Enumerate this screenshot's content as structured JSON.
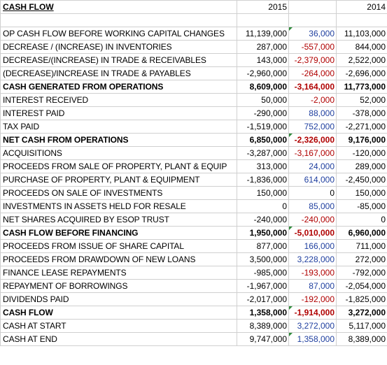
{
  "title": "CASH FLOW",
  "headers": {
    "y2015": "2015",
    "variance": "",
    "y2014": "2014"
  },
  "rows": [
    {
      "label": "OP CASH FLOW BEFORE WORKING CAPITAL CHANGES",
      "v2015": "11,139,000",
      "var": "36,000",
      "v2014": "11,103,000",
      "bold": false,
      "sign": "pos",
      "flag": true
    },
    {
      "label": "DECREASE / (INCREASE) IN INVENTORIES",
      "v2015": "287,000",
      "var": "-557,000",
      "v2014": "844,000",
      "bold": false,
      "sign": "neg",
      "flag": false
    },
    {
      "label": "DECREASE/(INCREASE) IN TRADE & RECEIVABLES",
      "v2015": "143,000",
      "var": "-2,379,000",
      "v2014": "2,522,000",
      "bold": false,
      "sign": "neg",
      "flag": false
    },
    {
      "label": "(DECREASE)/INCREASE IN TRADE & PAYABLES",
      "v2015": "-2,960,000",
      "var": "-264,000",
      "v2014": "-2,696,000",
      "bold": false,
      "sign": "neg",
      "flag": false
    },
    {
      "label": "CASH GENERATED FROM OPERATIONS",
      "v2015": "8,609,000",
      "var": "-3,164,000",
      "v2014": "11,773,000",
      "bold": true,
      "sign": "neg",
      "flag": false
    },
    {
      "label": "INTEREST RECEIVED",
      "v2015": "50,000",
      "var": "-2,000",
      "v2014": "52,000",
      "bold": false,
      "sign": "neg",
      "flag": false
    },
    {
      "label": "INTEREST PAID",
      "v2015": "-290,000",
      "var": "88,000",
      "v2014": "-378,000",
      "bold": false,
      "sign": "pos",
      "flag": false
    },
    {
      "label": "TAX PAID",
      "v2015": "-1,519,000",
      "var": "752,000",
      "v2014": "-2,271,000",
      "bold": false,
      "sign": "pos",
      "flag": false
    },
    {
      "label": "NET CASH FROM OPERATIONS",
      "v2015": "6,850,000",
      "var": "-2,326,000",
      "v2014": "9,176,000",
      "bold": true,
      "sign": "neg",
      "flag": true
    },
    {
      "label": "ACQUISITIONS",
      "v2015": "-3,287,000",
      "var": "-3,167,000",
      "v2014": "-120,000",
      "bold": false,
      "sign": "neg",
      "flag": false
    },
    {
      "label": "PROCEEDS FROM SALE OF PROPERTY, PLANT & EQUIP",
      "v2015": "313,000",
      "var": "24,000",
      "v2014": "289,000",
      "bold": false,
      "sign": "pos",
      "flag": false
    },
    {
      "label": "PURCHASE OF PROPERTY, PLANT & EQUIPMENT",
      "v2015": "-1,836,000",
      "var": "614,000",
      "v2014": "-2,450,000",
      "bold": false,
      "sign": "pos",
      "flag": false
    },
    {
      "label": "PROCEEDS ON SALE OF INVESTMENTS",
      "v2015": "150,000",
      "var": "0",
      "v2014": "150,000",
      "bold": false,
      "sign": "zero",
      "flag": false
    },
    {
      "label": "INVESTMENTS IN ASSETS HELD FOR RESALE",
      "v2015": "0",
      "var": "85,000",
      "v2014": "-85,000",
      "bold": false,
      "sign": "pos",
      "flag": false
    },
    {
      "label": "NET SHARES ACQUIRED BY ESOP TRUST",
      "v2015": "-240,000",
      "var": "-240,000",
      "v2014": "0",
      "bold": false,
      "sign": "neg",
      "flag": false
    },
    {
      "label": "CASH FLOW BEFORE FINANCING",
      "v2015": "1,950,000",
      "var": "-5,010,000",
      "v2014": "6,960,000",
      "bold": true,
      "sign": "neg",
      "flag": true
    },
    {
      "label": "PROCEEDS FROM ISSUE OF SHARE CAPITAL",
      "v2015": "877,000",
      "var": "166,000",
      "v2014": "711,000",
      "bold": false,
      "sign": "pos",
      "flag": false
    },
    {
      "label": "PROCEEDS FROM DRAWDOWN OF NEW LOANS",
      "v2015": "3,500,000",
      "var": "3,228,000",
      "v2014": "272,000",
      "bold": false,
      "sign": "pos",
      "flag": false
    },
    {
      "label": "FINANCE LEASE REPAYMENTS",
      "v2015": "-985,000",
      "var": "-193,000",
      "v2014": "-792,000",
      "bold": false,
      "sign": "neg",
      "flag": false
    },
    {
      "label": "REPAYMENT OF BORROWINGS",
      "v2015": "-1,967,000",
      "var": "87,000",
      "v2014": "-2,054,000",
      "bold": false,
      "sign": "pos",
      "flag": false
    },
    {
      "label": "DIVIDENDS PAID",
      "v2015": "-2,017,000",
      "var": "-192,000",
      "v2014": "-1,825,000",
      "bold": false,
      "sign": "neg",
      "flag": false
    },
    {
      "label": "CASH FLOW",
      "v2015": "1,358,000",
      "var": "-1,914,000",
      "v2014": "3,272,000",
      "bold": true,
      "sign": "neg",
      "flag": true
    },
    {
      "label": "CASH AT START",
      "v2015": "8,389,000",
      "var": "3,272,000",
      "v2014": "5,117,000",
      "bold": false,
      "sign": "pos",
      "flag": false
    },
    {
      "label": "CASH AT END",
      "v2015": "9,747,000",
      "var": "1,358,000",
      "v2014": "8,389,000",
      "bold": false,
      "sign": "pos",
      "flag": true
    }
  ]
}
